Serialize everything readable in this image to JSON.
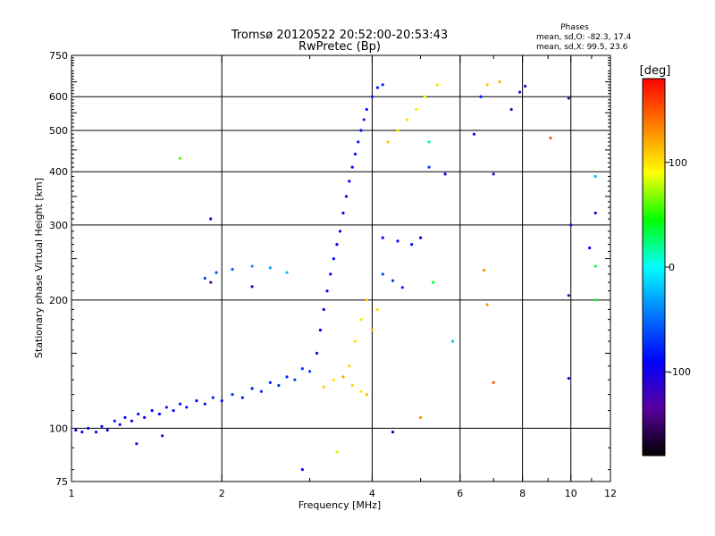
{
  "chart_data": {
    "type": "scatter",
    "title": "Tromsø 20120522 20:52:00-20:53:43",
    "subtitle": "RwPretec (Bp)",
    "xlabel": "Frequency [MHz]",
    "ylabel": "Stationary phase Virtual Height [km]",
    "x_scale": "log",
    "y_scale": "log",
    "xlim": [
      1,
      12
    ],
    "ylim": [
      75,
      750
    ],
    "grid": true,
    "x_ticks": [
      1,
      2,
      4,
      6,
      8,
      10,
      12
    ],
    "x_tick_labels": [
      "1",
      "2",
      "4",
      "6",
      "8",
      "10",
      "12"
    ],
    "x_gridlines": [
      2,
      4,
      6,
      8,
      10
    ],
    "y_ticks": [
      75,
      100,
      200,
      300,
      400,
      500,
      600,
      750
    ],
    "y_tick_labels": [
      "75",
      "100",
      "200",
      "300",
      "400",
      "500",
      "600",
      "750"
    ],
    "y_gridlines": [
      100,
      200,
      300,
      400,
      500,
      600
    ],
    "colorbar": {
      "label": "[deg]",
      "range": [
        -180,
        180
      ],
      "ticks": [
        100,
        0,
        -100
      ],
      "tick_labels": [
        "100",
        "0",
        "-100"
      ],
      "colors": [
        "#000000",
        "#5a00a0",
        "#0000ff",
        "#0078ff",
        "#00ffff",
        "#00ff00",
        "#ffff00",
        "#ff8000",
        "#ff0000"
      ]
    },
    "legend": {
      "heading": "Phases",
      "lines": [
        "mean, sd,O: -82.3, 17.4",
        "mean, sd,X:  99.5, 23.6"
      ]
    },
    "series": [
      {
        "points": [
          [
            1.02,
            99,
            -95
          ],
          [
            1.05,
            98,
            -98
          ],
          [
            1.08,
            100,
            -90
          ],
          [
            1.12,
            98,
            -100
          ],
          [
            1.15,
            101,
            -85
          ],
          [
            1.18,
            99,
            -92
          ],
          [
            1.22,
            104,
            -80
          ],
          [
            1.25,
            102,
            -96
          ],
          [
            1.28,
            106,
            -88
          ],
          [
            1.32,
            104,
            -94
          ],
          [
            1.36,
            108,
            -82
          ],
          [
            1.4,
            106,
            -90
          ],
          [
            1.45,
            110,
            -86
          ],
          [
            1.5,
            108,
            -92
          ],
          [
            1.55,
            112,
            -80
          ],
          [
            1.6,
            110,
            -88
          ],
          [
            1.65,
            114,
            -76
          ],
          [
            1.7,
            112,
            -84
          ],
          [
            1.78,
            116,
            -90
          ],
          [
            1.85,
            114,
            -82
          ],
          [
            1.92,
            118,
            -78
          ],
          [
            2.0,
            116,
            -86
          ],
          [
            2.1,
            120,
            -72
          ],
          [
            2.2,
            118,
            -80
          ],
          [
            2.3,
            124,
            -84
          ],
          [
            2.4,
            122,
            -76
          ],
          [
            2.5,
            128,
            -80
          ],
          [
            2.6,
            126,
            -70
          ],
          [
            2.7,
            132,
            -74
          ],
          [
            2.8,
            130,
            -66
          ],
          [
            2.9,
            138,
            -72
          ],
          [
            3.0,
            136,
            -64
          ],
          [
            3.1,
            150,
            -86
          ],
          [
            3.15,
            170,
            -92
          ],
          [
            3.2,
            190,
            -96
          ],
          [
            3.25,
            210,
            -90
          ],
          [
            3.3,
            230,
            -94
          ],
          [
            3.35,
            250,
            -88
          ],
          [
            3.4,
            270,
            -96
          ],
          [
            3.45,
            290,
            -90
          ],
          [
            3.5,
            320,
            -92
          ],
          [
            3.55,
            350,
            -86
          ],
          [
            3.6,
            380,
            -90
          ],
          [
            3.65,
            410,
            -84
          ],
          [
            3.7,
            440,
            -88
          ],
          [
            3.75,
            470,
            -82
          ],
          [
            3.8,
            500,
            -86
          ],
          [
            3.85,
            530,
            -80
          ],
          [
            3.9,
            560,
            -84
          ],
          [
            4.0,
            600,
            -78
          ],
          [
            4.1,
            630,
            -80
          ],
          [
            4.2,
            640,
            -76
          ],
          [
            1.85,
            225,
            -70
          ],
          [
            1.95,
            232,
            -60
          ],
          [
            2.1,
            236,
            -52
          ],
          [
            2.3,
            240,
            -40
          ],
          [
            2.5,
            238,
            -30
          ],
          [
            2.7,
            232,
            -20
          ],
          [
            4.2,
            230,
            -60
          ],
          [
            4.4,
            222,
            -70
          ],
          [
            4.6,
            214,
            -80
          ],
          [
            4.2,
            280,
            -90
          ],
          [
            4.5,
            275,
            -88
          ],
          [
            4.8,
            270,
            -84
          ],
          [
            5.0,
            280,
            -96
          ]
        ]
      },
      {
        "points": [
          [
            3.2,
            125,
            110
          ],
          [
            3.35,
            130,
            100
          ],
          [
            3.5,
            132,
            120
          ],
          [
            3.65,
            126,
            106
          ],
          [
            3.8,
            122,
            98
          ],
          [
            3.9,
            120,
            112
          ],
          [
            3.6,
            140,
            104
          ],
          [
            3.7,
            160,
            100
          ],
          [
            3.8,
            180,
            96
          ],
          [
            3.9,
            200,
            108
          ],
          [
            4.0,
            170,
            114
          ],
          [
            4.1,
            190,
            102
          ],
          [
            4.3,
            470,
            110
          ],
          [
            4.5,
            500,
            98
          ],
          [
            4.7,
            530,
            104
          ],
          [
            4.9,
            560,
            96
          ],
          [
            5.1,
            600,
            92
          ],
          [
            5.4,
            640,
            100
          ],
          [
            5.2,
            470,
            20
          ],
          [
            5.3,
            220,
            40
          ],
          [
            6.8,
            640,
            110
          ],
          [
            7.2,
            650,
            120
          ],
          [
            9.1,
            480,
            150
          ],
          [
            7.0,
            128,
            150
          ],
          [
            5.0,
            106,
            130
          ]
        ]
      },
      {
        "points": [
          [
            1.65,
            430,
            60
          ],
          [
            1.9,
            310,
            -110
          ],
          [
            1.9,
            220,
            -130
          ],
          [
            2.3,
            215,
            -110
          ],
          [
            2.9,
            80,
            -100
          ],
          [
            3.4,
            88,
            80
          ],
          [
            4.4,
            98,
            -90
          ],
          [
            5.2,
            410,
            -70
          ],
          [
            5.6,
            395,
            -90
          ],
          [
            6.6,
            600,
            -80
          ],
          [
            7.0,
            395,
            -120
          ],
          [
            7.6,
            560,
            -120
          ],
          [
            7.9,
            615,
            -120
          ],
          [
            8.1,
            635,
            -110
          ],
          [
            9.9,
            595,
            -130
          ],
          [
            10.0,
            300,
            -110
          ],
          [
            9.9,
            205,
            -120
          ],
          [
            9.9,
            131,
            -110
          ],
          [
            10.9,
            265,
            -90
          ],
          [
            11.2,
            320,
            -100
          ],
          [
            11.2,
            390,
            -20
          ],
          [
            11.2,
            200,
            40
          ],
          [
            11.2,
            240,
            40
          ],
          [
            6.4,
            490,
            -100
          ],
          [
            6.7,
            235,
            130
          ],
          [
            6.8,
            195,
            130
          ],
          [
            5.8,
            160,
            -20
          ],
          [
            1.35,
            92,
            -110
          ],
          [
            1.52,
            96,
            -120
          ]
        ]
      }
    ]
  }
}
